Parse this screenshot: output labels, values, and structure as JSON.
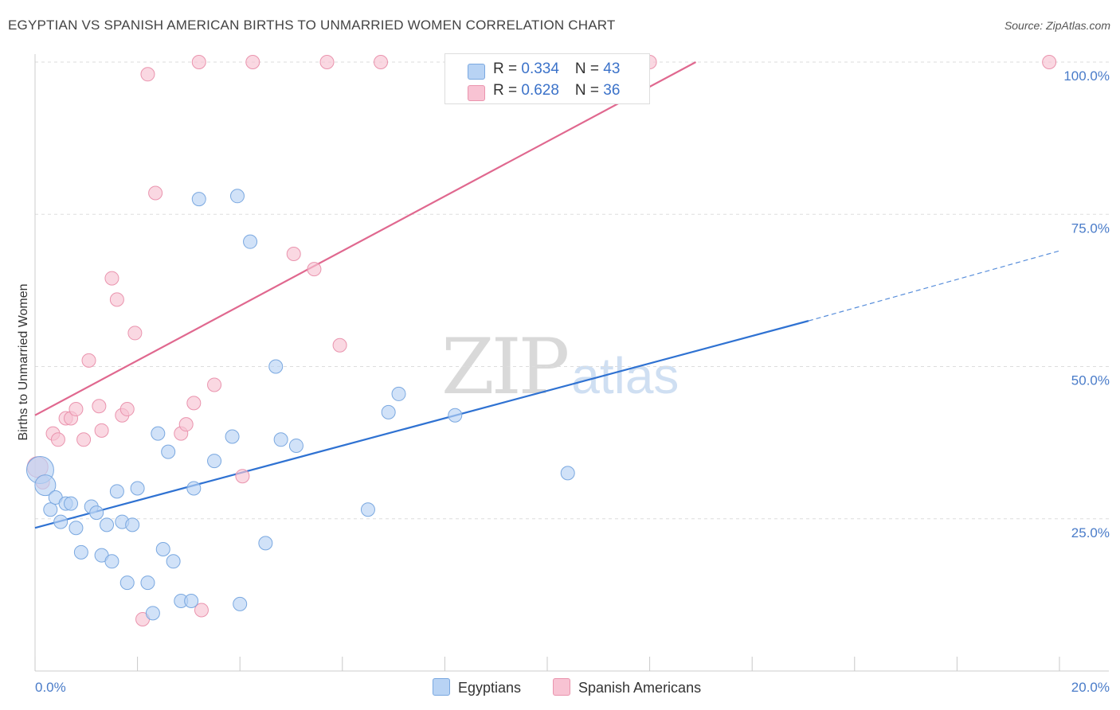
{
  "header": {
    "title": "EGYPTIAN VS SPANISH AMERICAN BIRTHS TO UNMARRIED WOMEN CORRELATION CHART",
    "source": "Source: ZipAtlas.com"
  },
  "watermark": {
    "zip": "ZIP",
    "atlas": "atlas"
  },
  "legend": {
    "rows": [
      {
        "r_label": "R = ",
        "r_value": "0.334",
        "n_label": "N = ",
        "n_value": "43"
      },
      {
        "r_label": "R = ",
        "r_value": "0.628",
        "n_label": "N = ",
        "n_value": "36"
      }
    ]
  },
  "bottom_legend": {
    "egyptians": "Egyptians",
    "spanish": "Spanish Americans"
  },
  "colors": {
    "blue_fill": "#b8d3f4",
    "blue_stroke": "#7aa8e0",
    "blue_line": "#2f72d2",
    "pink_fill": "#f8c3d3",
    "pink_stroke": "#ea94ae",
    "pink_line": "#e0688f",
    "grid": "#dddddd",
    "tick_text": "#4a7cc9"
  },
  "chart_data": {
    "type": "scatter",
    "title": "EGYPTIAN VS SPANISH AMERICAN BIRTHS TO UNMARRIED WOMEN CORRELATION CHART",
    "xlabel": "",
    "ylabel": "Births to Unmarried Women",
    "xlim": [
      0,
      20
    ],
    "ylim": [
      0,
      100
    ],
    "x_tick_labels": [
      "0.0%",
      "20.0%"
    ],
    "y_ticks": [
      25,
      50,
      75,
      100
    ],
    "y_tick_labels": [
      "25.0%",
      "50.0%",
      "75.0%",
      "100.0%"
    ],
    "grid": true,
    "series": [
      {
        "name": "Egyptians",
        "color": "#b8d3f4",
        "r": 0.334,
        "n": 43,
        "trend": {
          "x": [
            0,
            15.1
          ],
          "y": [
            23.5,
            57.5
          ],
          "dashed_to": {
            "x": 20,
            "y": 69.0
          }
        },
        "points": [
          [
            0.1,
            33.0,
            3
          ],
          [
            0.2,
            30.5,
            2
          ],
          [
            0.3,
            26.5,
            1
          ],
          [
            0.4,
            28.5,
            1
          ],
          [
            0.5,
            24.5,
            1
          ],
          [
            0.6,
            27.5,
            1
          ],
          [
            0.7,
            27.5,
            1
          ],
          [
            0.8,
            23.5,
            1
          ],
          [
            0.9,
            19.5,
            1
          ],
          [
            1.1,
            27.0,
            1
          ],
          [
            1.2,
            26.0,
            1
          ],
          [
            1.3,
            19.0,
            1
          ],
          [
            1.4,
            24.0,
            1
          ],
          [
            1.5,
            18.0,
            1
          ],
          [
            1.6,
            29.5,
            1
          ],
          [
            1.7,
            24.5,
            1
          ],
          [
            1.8,
            14.5,
            1
          ],
          [
            1.9,
            24.0,
            1
          ],
          [
            2.0,
            30.0,
            1
          ],
          [
            2.2,
            14.5,
            1
          ],
          [
            2.3,
            9.5,
            1
          ],
          [
            2.4,
            39.0,
            1
          ],
          [
            2.5,
            20.0,
            1
          ],
          [
            2.6,
            36.0,
            1
          ],
          [
            2.7,
            18.0,
            1
          ],
          [
            2.85,
            11.5,
            1
          ],
          [
            3.05,
            11.5,
            1
          ],
          [
            3.1,
            30.0,
            1
          ],
          [
            3.2,
            77.5,
            1
          ],
          [
            3.5,
            34.5,
            1
          ],
          [
            3.85,
            38.5,
            1
          ],
          [
            3.95,
            78.0,
            1
          ],
          [
            4.0,
            11.0,
            1
          ],
          [
            4.2,
            70.5,
            1
          ],
          [
            4.5,
            21.0,
            1
          ],
          [
            4.7,
            50.0,
            1
          ],
          [
            4.8,
            38.0,
            1
          ],
          [
            5.1,
            37.0,
            1
          ],
          [
            6.5,
            26.5,
            1
          ],
          [
            6.9,
            42.5,
            1
          ],
          [
            7.1,
            45.5,
            1
          ],
          [
            8.2,
            42.0,
            1
          ],
          [
            10.4,
            32.5,
            1
          ]
        ]
      },
      {
        "name": "Spanish Americans",
        "color": "#f8c3d3",
        "r": 0.628,
        "n": 36,
        "trend": {
          "x": [
            0,
            12.9
          ],
          "y": [
            42.0,
            100.0
          ]
        },
        "points": [
          [
            0.05,
            33.5,
            2
          ],
          [
            0.15,
            31.0,
            1
          ],
          [
            0.35,
            39.0,
            1
          ],
          [
            0.45,
            38.0,
            1
          ],
          [
            0.6,
            41.5,
            1
          ],
          [
            0.7,
            41.5,
            1
          ],
          [
            0.8,
            43.0,
            1
          ],
          [
            0.95,
            38.0,
            1
          ],
          [
            1.05,
            51.0,
            1
          ],
          [
            1.25,
            43.5,
            1
          ],
          [
            1.3,
            39.5,
            1
          ],
          [
            1.5,
            64.5,
            1
          ],
          [
            1.6,
            61.0,
            1
          ],
          [
            1.7,
            42.0,
            1
          ],
          [
            1.8,
            43.0,
            1
          ],
          [
            1.95,
            55.5,
            1
          ],
          [
            2.1,
            8.5,
            1
          ],
          [
            2.2,
            98.0,
            1
          ],
          [
            2.35,
            78.5,
            1
          ],
          [
            2.85,
            39.0,
            1
          ],
          [
            2.95,
            40.5,
            1
          ],
          [
            3.1,
            44.0,
            1
          ],
          [
            3.2,
            100.0,
            1
          ],
          [
            3.25,
            10.0,
            1
          ],
          [
            3.5,
            47.0,
            1
          ],
          [
            4.05,
            32.0,
            1
          ],
          [
            4.25,
            100.0,
            1
          ],
          [
            5.05,
            68.5,
            1
          ],
          [
            5.45,
            66.0,
            1
          ],
          [
            5.7,
            100.0,
            1
          ],
          [
            5.95,
            53.5,
            1
          ],
          [
            6.75,
            100.0,
            1
          ],
          [
            9.0,
            100.0,
            1
          ],
          [
            11.5,
            100.0,
            1
          ],
          [
            12.0,
            100.0,
            1
          ],
          [
            19.8,
            100.0,
            1
          ]
        ]
      }
    ]
  }
}
